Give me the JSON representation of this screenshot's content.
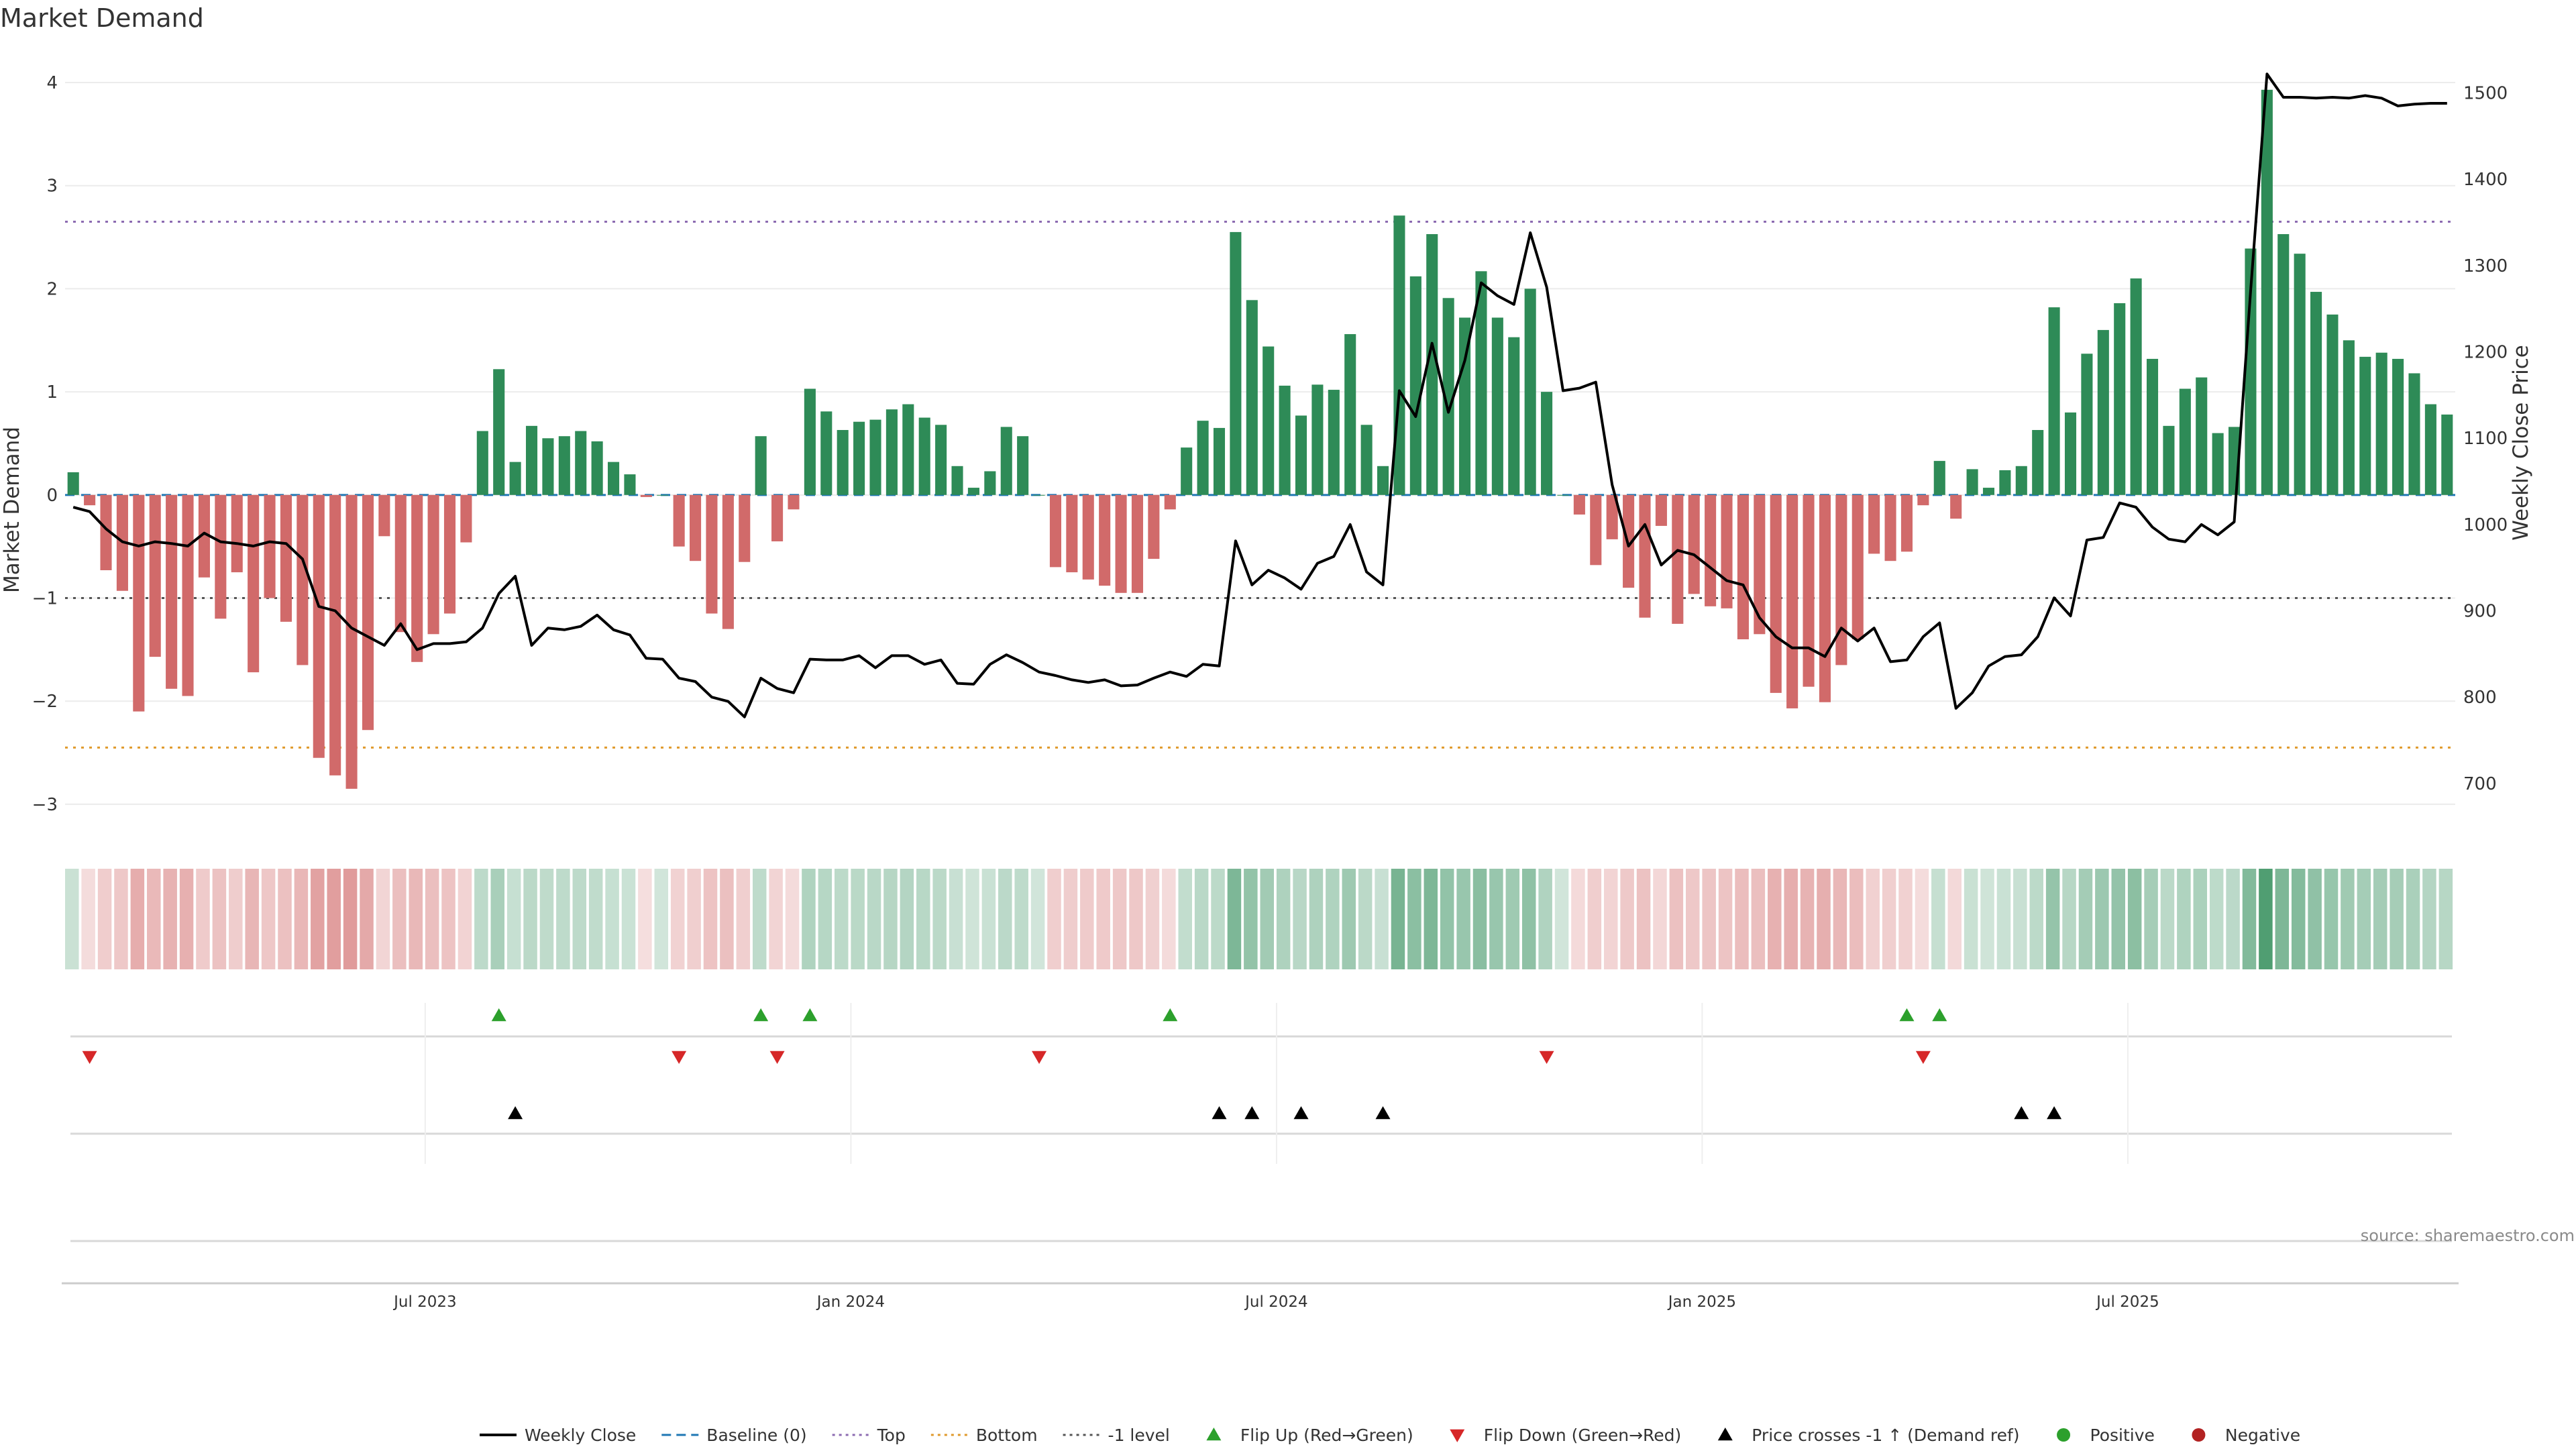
{
  "chart_data": {
    "type": "bar",
    "title": "Market Demand",
    "ylabel": "Market Demand",
    "y2label": "Weekly Close Price",
    "ylim": [
      -3.3,
      4.15
    ],
    "y2lim": [
      640,
      1530
    ],
    "yticks": [
      4,
      3,
      2,
      1,
      0,
      -1,
      -2,
      -3
    ],
    "yticks_text": [
      "4",
      "3",
      "2",
      "1",
      "0",
      "−1",
      "−2",
      "−3"
    ],
    "y2ticks": [
      1500,
      1400,
      1300,
      1200,
      1100,
      1000,
      900,
      800,
      700
    ],
    "y2ticks_text": [
      "1500",
      "1400",
      "1300",
      "1200",
      "1100",
      "1000",
      "900",
      "800",
      "700"
    ],
    "x_dates": {
      "start": "2023-03-13",
      "step_days": 7,
      "count": 144
    },
    "xticks": [
      {
        "label": "Jul 2023",
        "week": 22
      },
      {
        "label": "Jan 2024",
        "week": 48
      },
      {
        "label": "Jul 2024",
        "week": 74
      },
      {
        "label": "Jan 2025",
        "week": 100
      },
      {
        "label": "Jul 2025",
        "week": 126
      }
    ],
    "reference_lines": [
      {
        "name": "Top",
        "value": 2.65,
        "color": "#8c6bb1",
        "dash": "4,8"
      },
      {
        "name": "-1 level",
        "value": -1,
        "color": "#555555",
        "dash": "4,8"
      },
      {
        "name": "Bottom",
        "value": -2.45,
        "color": "#e09a2c",
        "dash": "4,8"
      },
      {
        "name": "Baseline (0)",
        "value": 0,
        "color": "#1f77b4",
        "dash": "14,10"
      }
    ],
    "series": [
      {
        "name": "Market Demand",
        "type": "bar",
        "positive_color": "#2e8b57",
        "negative_color": "#d16a6a",
        "values": [
          0.22,
          -0.1,
          -0.73,
          -0.93,
          -2.1,
          -1.57,
          -1.88,
          -1.95,
          -0.8,
          -1.2,
          -0.75,
          -1.72,
          -1.0,
          -1.23,
          -1.65,
          -2.55,
          -2.72,
          -2.85,
          -2.28,
          -0.4,
          -1.33,
          -1.62,
          -1.35,
          -1.15,
          -0.46,
          0.62,
          1.22,
          0.32,
          0.67,
          0.55,
          0.57,
          0.62,
          0.52,
          0.32,
          0.2,
          -0.02,
          0.0,
          -0.5,
          -0.64,
          -1.15,
          -1.3,
          -0.65,
          0.57,
          -0.45,
          -0.14,
          1.03,
          0.81,
          0.63,
          0.71,
          0.73,
          0.83,
          0.88,
          0.75,
          0.68,
          0.28,
          0.07,
          0.23,
          0.66,
          0.57,
          0.0,
          -0.7,
          -0.75,
          -0.82,
          -0.88,
          -0.95,
          -0.95,
          -0.62,
          -0.14,
          0.46,
          0.72,
          0.65,
          2.55,
          1.89,
          1.44,
          1.06,
          0.77,
          1.07,
          1.02,
          1.56,
          0.68,
          0.28,
          2.71,
          2.12,
          2.53,
          1.91,
          1.72,
          2.17,
          1.72,
          1.53,
          2.0,
          1.0,
          0.0,
          -0.19,
          -0.68,
          -0.43,
          -0.9,
          -1.19,
          -0.3,
          -1.25,
          -0.96,
          -1.08,
          -1.1,
          -1.4,
          -1.35,
          -1.92,
          -2.07,
          -1.86,
          -2.01,
          -1.65,
          -1.4,
          -0.57,
          -0.64,
          -0.55,
          -0.1,
          0.33,
          -0.23,
          0.25,
          0.07,
          0.24,
          0.28,
          0.63,
          1.82,
          0.8,
          1.37,
          1.6,
          1.86,
          2.1,
          1.32,
          0.67,
          1.03,
          1.14,
          0.6,
          0.66,
          2.39,
          3.93,
          2.53,
          2.34,
          1.97,
          1.75,
          1.5,
          1.34,
          1.38,
          1.32,
          1.18,
          0.88,
          0.78
        ]
      },
      {
        "name": "Weekly Close",
        "type": "line",
        "axis": "right",
        "color": "#000000",
        "values": [
          1020,
          1015,
          995,
          980,
          975,
          980,
          978,
          975,
          990,
          980,
          978,
          975,
          980,
          978,
          960,
          905,
          900,
          880,
          870,
          860,
          885,
          855,
          862,
          862,
          864,
          880,
          920,
          940,
          860,
          880,
          878,
          882,
          895,
          878,
          872,
          845,
          844,
          822,
          818,
          800,
          795,
          777,
          822,
          810,
          805,
          844,
          843,
          843,
          848,
          834,
          848,
          848,
          838,
          843,
          816,
          815,
          838,
          849,
          840,
          829,
          825,
          820,
          817,
          820,
          813,
          814,
          822,
          829,
          824,
          838,
          836,
          981,
          930,
          947,
          938,
          925,
          955,
          963,
          1000,
          945,
          930,
          1155,
          1125,
          1210,
          1130,
          1190,
          1280,
          1265,
          1255,
          1338,
          1275,
          1155,
          1158,
          1165,
          1046,
          975,
          1000,
          953,
          970,
          965,
          950,
          935,
          930,
          892,
          870,
          857,
          857,
          847,
          880,
          865,
          880,
          841,
          843,
          870,
          886,
          787,
          805,
          836,
          847,
          849,
          870,
          915,
          894,
          982,
          985,
          1025,
          1020,
          997,
          983,
          980,
          1000,
          988,
          1003,
          1270,
          1522,
          1495,
          1495,
          1494,
          1495,
          1494,
          1497,
          1494,
          1485,
          1487,
          1488,
          1488
        ]
      }
    ],
    "regime_strip": {
      "positive_color": "#2e8b57",
      "negative_color": "#d16a6a",
      "note": "one cell per week, colour intensity by demand magnitude"
    },
    "markers": {
      "flip_up_weeks": [
        26,
        42,
        45,
        67,
        112,
        114
      ],
      "flip_down_weeks": [
        1,
        37,
        43,
        59,
        90,
        113
      ],
      "price_cross_weeks": [
        27,
        70,
        72,
        75,
        80,
        119,
        121
      ],
      "flip_up_color": "#2ca02c",
      "flip_down_color": "#d62728",
      "cross_color": "#000000"
    },
    "legend": [
      {
        "label": "Weekly Close",
        "kind": "line",
        "color": "#000000"
      },
      {
        "label": "Baseline (0)",
        "kind": "dash",
        "color": "#1f77b4"
      },
      {
        "label": "Top",
        "kind": "dot",
        "color": "#8c6bb1"
      },
      {
        "label": "Bottom",
        "kind": "dot",
        "color": "#e09a2c"
      },
      {
        "label": "-1 level",
        "kind": "dot",
        "color": "#555555"
      },
      {
        "label": "Flip Up (Red→Green)",
        "kind": "tri-up",
        "color": "#2ca02c"
      },
      {
        "label": "Flip Down (Green→Red)",
        "kind": "tri-down",
        "color": "#d62728"
      },
      {
        "label": "Price crosses -1 ↑ (Demand ref)",
        "kind": "tri-up",
        "color": "#000000"
      },
      {
        "label": "Positive",
        "kind": "circle",
        "color": "#2ca02c"
      },
      {
        "label": "Negative",
        "kind": "circle",
        "color": "#b22222"
      }
    ],
    "source": "source: sharemaestro.com"
  }
}
